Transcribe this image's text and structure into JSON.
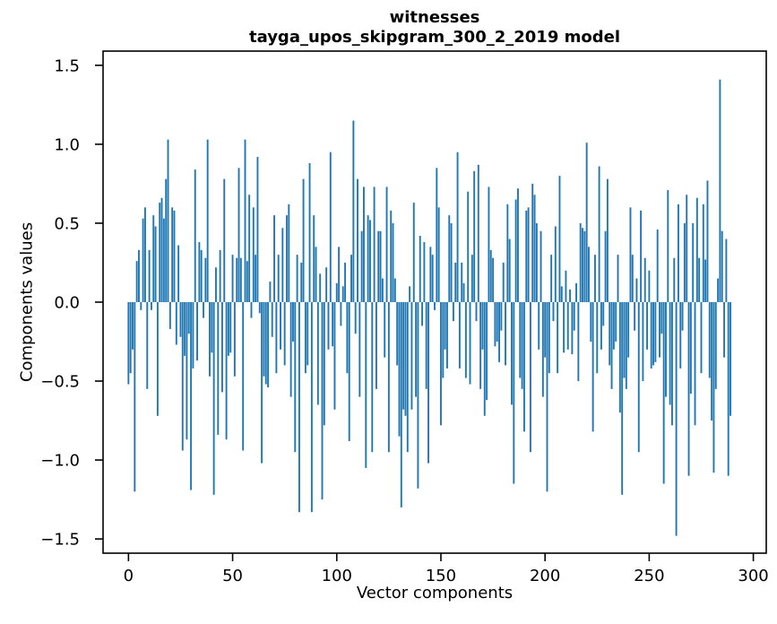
{
  "chart_data": {
    "type": "bar",
    "title": "witnesses",
    "subtitle": "tayga_upos_skipgram_300_2_2019 model",
    "xlabel": "Vector components",
    "ylabel": "Components values",
    "bar_color": "#1f77b4",
    "grid": false,
    "legend": null,
    "x_ticks": [
      0,
      50,
      100,
      150,
      200,
      250,
      300
    ],
    "x_tick_labels": [
      "0",
      "50",
      "100",
      "150",
      "200",
      "250",
      "300"
    ],
    "y_ticks": [
      1.5,
      1.0,
      0.5,
      0.0,
      -0.5,
      -1.0,
      -1.5
    ],
    "y_tick_labels": [
      "1.5",
      "1.0",
      "0.5",
      "0.0",
      "−0.5",
      "−1.0",
      "−1.5"
    ],
    "xlim": [
      -12.2,
      306.2
    ],
    "ylim": [
      -1.59,
      1.59
    ],
    "n_components": 290,
    "values": [
      -0.52,
      -0.45,
      -0.3,
      -1.2,
      0.26,
      0.33,
      -0.05,
      0.53,
      0.6,
      -0.55,
      0.33,
      -0.05,
      0.55,
      0.48,
      -0.72,
      0.63,
      0.66,
      0.53,
      0.78,
      1.03,
      -0.17,
      0.6,
      0.58,
      -0.27,
      0.36,
      -0.22,
      -0.94,
      -0.34,
      -0.87,
      -0.2,
      -1.19,
      -0.42,
      0.84,
      -0.37,
      0.38,
      0.33,
      -0.1,
      0.28,
      1.03,
      -0.47,
      -0.32,
      -1.22,
      0.22,
      -0.84,
      0.33,
      -0.57,
      0.78,
      -0.87,
      -0.34,
      -0.32,
      0.3,
      -0.47,
      0.28,
      0.85,
      0.28,
      -0.94,
      1.03,
      0.26,
      0.68,
      -0.1,
      0.6,
      0.3,
      0.92,
      -0.07,
      -1.02,
      -0.47,
      -0.52,
      -0.54,
      0.13,
      -0.22,
      0.55,
      -0.45,
      0.3,
      -0.3,
      0.47,
      -0.4,
      0.55,
      0.62,
      -0.6,
      -0.25,
      -0.95,
      0.3,
      -1.33,
      0.25,
      0.78,
      -0.45,
      -0.4,
      0.88,
      -1.33,
      0.55,
      0.35,
      -0.65,
      0.18,
      -1.25,
      -0.78,
      0.22,
      -0.3,
      0.95,
      -0.28,
      -0.68,
      0.12,
      0.35,
      -0.15,
      0.1,
      0.25,
      -0.45,
      -0.88,
      0.3,
      1.15,
      -0.2,
      0.78,
      -0.6,
      0.45,
      0.73,
      -1.05,
      0.55,
      0.52,
      -0.95,
      0.73,
      -0.55,
      0.45,
      0.45,
      0.15,
      -0.35,
      0.73,
      -0.95,
      0.58,
      0.5,
      0.15,
      -0.4,
      -0.85,
      -1.3,
      -0.68,
      -0.72,
      -0.95,
      0.1,
      -0.68,
      0.63,
      -0.6,
      -1.18,
      0.42,
      -0.15,
      0.38,
      -0.55,
      -1.02,
      0.35,
      0.3,
      -0.05,
      0.85,
      0.6,
      -0.78,
      -0.48,
      -0.3,
      -0.42,
      0.55,
      0.5,
      -0.12,
      0.25,
      0.95,
      -0.42,
      0.25,
      0.12,
      -0.48,
      0.7,
      -0.52,
      0.3,
      0.83,
      -0.12,
      0.87,
      -0.55,
      -0.3,
      -0.72,
      -0.62,
      0.73,
      0.33,
      0.28,
      -0.28,
      -0.25,
      -0.38,
      -0.18,
      0.25,
      -0.4,
      0.62,
      0.4,
      -0.65,
      -1.15,
      0.65,
      0.72,
      -0.48,
      -0.55,
      -0.82,
      0.58,
      0.6,
      -0.95,
      0.75,
      0.68,
      0.5,
      -0.3,
      0.45,
      -0.6,
      -0.35,
      -1.2,
      -0.45,
      0.3,
      -0.12,
      0.48,
      -0.45,
      0.8,
      0.1,
      -0.32,
      0.2,
      -0.3,
      0.08,
      -0.33,
      -0.18,
      0.12,
      -0.5,
      0.5,
      0.47,
      0.45,
      1.01,
      0.35,
      -0.25,
      -0.82,
      0.3,
      -0.45,
      0.86,
      -0.3,
      -0.15,
      0.45,
      0.78,
      -0.4,
      -0.55,
      -0.3,
      -0.25,
      0.3,
      -0.7,
      -1.22,
      -0.48,
      -0.55,
      -0.35,
      0.6,
      0.3,
      -0.18,
      0.15,
      -0.95,
      0.58,
      -0.5,
      0.28,
      -0.3,
      0.2,
      -0.42,
      -0.4,
      -0.38,
      0.46,
      -0.35,
      -0.2,
      -1.15,
      -0.6,
      0.71,
      -0.65,
      -0.78,
      0.28,
      -1.48,
      0.62,
      -0.42,
      -0.18,
      0.5,
      0.68,
      -1.1,
      -0.58,
      0.5,
      -0.78,
      0.66,
      0.28,
      -0.45,
      0.62,
      0.27,
      0.77,
      -0.48,
      -0.75,
      -1.08,
      -0.55,
      0.15,
      1.41,
      0.45,
      -0.35,
      0.4,
      -1.1,
      -0.72
    ]
  }
}
